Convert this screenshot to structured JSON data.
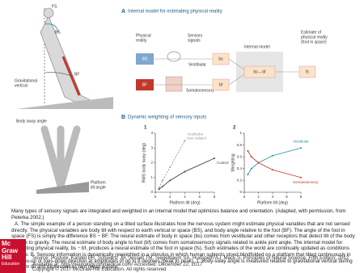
{
  "figure": {
    "panel_a": {
      "letter": "A",
      "title": "Internal model for estimating physical reality",
      "person_labels": [
        "FS",
        "BS",
        "BF"
      ],
      "gravitational_vertical": [
        "Gravitational",
        "vertical"
      ],
      "physical_reality": [
        "Physical",
        "reality"
      ],
      "bs_box": "BS",
      "bf_box": "BF",
      "sensory_signals": [
        "Sensory",
        "signals"
      ],
      "vestibular": "Vestibular",
      "somatosensory": "Somatosensory",
      "bs_signal": "bs",
      "bf_signal": "bf",
      "internal_model": "Internal model",
      "model_box": "bs – bf",
      "estimate": [
        "Estimate of",
        "physical reality",
        "(foot in space)"
      ],
      "fs_box": "fs"
    },
    "panel_b": {
      "letter": "B",
      "title": "Dynamic weighting of sensory inputs",
      "body_sway_angle": "Body sway angle",
      "platform_tilt_angle": [
        "Platform",
        "tilt angle"
      ],
      "charts": [
        {
          "number": "1",
          "type": "line",
          "x_label": "Platform tilt (deg)",
          "y_label": "RMS body sway (deg)",
          "x": [
            0.5,
            1,
            2,
            4,
            8
          ],
          "xlim": [
            0,
            8
          ],
          "ylim": [
            0,
            4
          ],
          "xticks": [
            0,
            2,
            4,
            6,
            8
          ],
          "yticks": [
            0,
            1,
            2,
            3,
            4
          ],
          "series": [
            {
              "name": [
                "Vestibular",
                "loss subject"
              ],
              "color": "#999999",
              "dashed": true,
              "values": [
                0.3,
                0.8,
                1.7,
                3.5,
                null
              ]
            },
            {
              "name": [
                "Control"
              ],
              "color": "#444444",
              "dashed": false,
              "values": [
                0.2,
                0.4,
                0.8,
                1.4,
                2.3
              ]
            }
          ]
        },
        {
          "number": "2",
          "type": "line",
          "x_label": "Platform tilt (deg)",
          "y_label": "Weighting",
          "x": [
            0.5,
            1,
            2,
            4,
            8
          ],
          "xlim": [
            0,
            8
          ],
          "ylim": [
            0,
            1
          ],
          "xticks": [
            0,
            2,
            4,
            6,
            8
          ],
          "yticks": [
            0,
            0.2,
            0.4,
            0.6,
            0.8,
            1
          ],
          "series": [
            {
              "name": [
                "Vestibular"
              ],
              "color": "#2a8fa8",
              "dashed": false,
              "values": [
                0.3,
                0.4,
                0.5,
                0.62,
                0.75
              ]
            },
            {
              "name": [
                "Somatosensory"
              ],
              "color": "#c0392b",
              "dashed": false,
              "values": [
                0.7,
                0.6,
                0.5,
                0.38,
                0.25
              ]
            }
          ]
        }
      ]
    }
  },
  "caption": {
    "summary": "Many types of sensory signals are integrated and weighted in an internal model that optimizes balance and orientation. (Adapted, with permission, from Peterka 2002.)",
    "paragraph": "A. The simple example of a person standing on a tilted surface illustrates how the nervous system might estimate physical variables that are not sensed directly. The physical variables are body tilt with respect to earth vertical or space (BS), and body angle relative to the foot (BF). The angle of the foot in space (FS) is simply the difference BS − BF. The neural estimate of body in space (bs) comes from vestibular and other receptors that detect tilt of the body relative to gravity. The neural estimate of body angle to foot (bf) comes from somatosensory signals related to ankle joint angle. The internal model for estimating physical reality, bs − bf, produces a neural estimate of the foot in space (fs). Such estimates of the world are continually updated as conditions change. B. Sensory information is dynamically reweighted in a stimulus in which human subjects stood blindfolded on a platform that tilted continuously in the toes-up or toes-down direction at amplitudes of up to 8 degrees (peak to peak). 1. Body-sway angle is measured relative to gravitational vertical during platform tilt and expressed as root mean square.",
    "source": "Source: Posture, Kandel ER, Schwartz JH, Jessell TM, Siegelbaum SA, Hudspeth AJ, Mack S. Principles of Neural Science, Fifth Edition; 2012 Available at: http://neurology.mhmedical.com/ Accessed: December 22, 2017",
    "copyright": "Copyright © 2017 McGraw-Hill Education. All rights reserved"
  },
  "logo": [
    "Mc",
    "Graw",
    "Hill",
    "Education"
  ]
}
